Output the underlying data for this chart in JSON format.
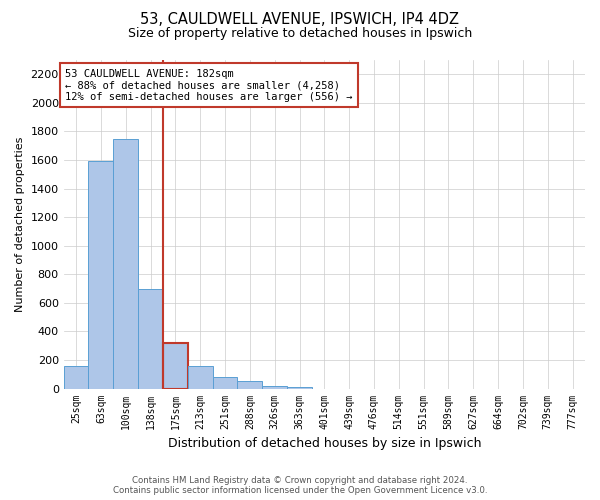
{
  "title_line1": "53, CAULDWELL AVENUE, IPSWICH, IP4 4DZ",
  "title_line2": "Size of property relative to detached houses in Ipswich",
  "xlabel": "Distribution of detached houses by size in Ipswich",
  "ylabel": "Number of detached properties",
  "bin_labels": [
    "25sqm",
    "63sqm",
    "100sqm",
    "138sqm",
    "175sqm",
    "213sqm",
    "251sqm",
    "288sqm",
    "326sqm",
    "363sqm",
    "401sqm",
    "439sqm",
    "476sqm",
    "514sqm",
    "551sqm",
    "589sqm",
    "627sqm",
    "664sqm",
    "702sqm",
    "739sqm",
    "777sqm"
  ],
  "bar_values": [
    160,
    1590,
    1750,
    700,
    320,
    155,
    80,
    50,
    20,
    10,
    0,
    0,
    0,
    0,
    0,
    0,
    0,
    0,
    0,
    0,
    0
  ],
  "bar_color": "#aec6e8",
  "bar_edge_color": "#5a9fd4",
  "highlight_bar_index": 4,
  "highlight_color": "#c0392b",
  "annotation_title": "53 CAULDWELL AVENUE: 182sqm",
  "annotation_line2": "← 88% of detached houses are smaller (4,258)",
  "annotation_line3": "12% of semi-detached houses are larger (556) →",
  "annotation_box_color": "#c0392b",
  "ylim": [
    0,
    2300
  ],
  "yticks": [
    0,
    200,
    400,
    600,
    800,
    1000,
    1200,
    1400,
    1600,
    1800,
    2000,
    2200
  ],
  "footer_line1": "Contains HM Land Registry data © Crown copyright and database right 2024.",
  "footer_line2": "Contains public sector information licensed under the Open Government Licence v3.0.",
  "background_color": "#ffffff",
  "grid_color": "#cccccc"
}
